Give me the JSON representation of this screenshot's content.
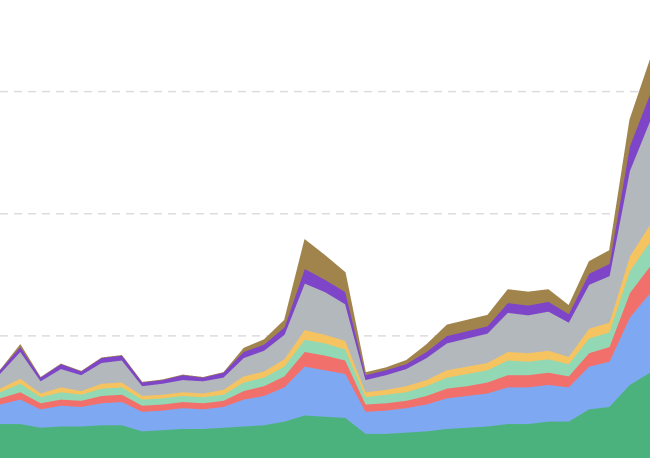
{
  "chart_data": {
    "type": "stacked_area",
    "categories": [
      null,
      null,
      null,
      null,
      null,
      null,
      null,
      null,
      null,
      null,
      null,
      null,
      null,
      null,
      null,
      null,
      null,
      null,
      null,
      null,
      null,
      null,
      null,
      null,
      null,
      null,
      null,
      null,
      null,
      null,
      null,
      null,
      null
    ],
    "ylim": [
      0,
      3.75
    ],
    "yticks": [
      1,
      2,
      3
    ],
    "grid": true,
    "series": [
      {
        "color": "#4cb27d",
        "values": [
          0.28,
          0.28,
          0.25,
          0.26,
          0.26,
          0.27,
          0.27,
          0.22,
          0.23,
          0.24,
          0.24,
          0.25,
          0.26,
          0.27,
          0.3,
          0.35,
          0.34,
          0.33,
          0.2,
          0.2,
          0.21,
          0.22,
          0.24,
          0.25,
          0.26,
          0.28,
          0.28,
          0.3,
          0.3,
          0.4,
          0.42,
          0.6,
          0.7
        ]
      },
      {
        "color": "#7ea8f2",
        "values": [
          0.16,
          0.2,
          0.15,
          0.17,
          0.16,
          0.18,
          0.19,
          0.16,
          0.16,
          0.17,
          0.16,
          0.17,
          0.22,
          0.24,
          0.28,
          0.4,
          0.38,
          0.36,
          0.18,
          0.19,
          0.2,
          0.22,
          0.25,
          0.26,
          0.27,
          0.3,
          0.3,
          0.3,
          0.28,
          0.35,
          0.37,
          0.55,
          0.65
        ]
      },
      {
        "color": "#f2706c",
        "values": [
          0.05,
          0.06,
          0.05,
          0.05,
          0.05,
          0.06,
          0.06,
          0.05,
          0.05,
          0.05,
          0.05,
          0.05,
          0.07,
          0.08,
          0.09,
          0.12,
          0.12,
          0.11,
          0.06,
          0.06,
          0.06,
          0.07,
          0.08,
          0.08,
          0.09,
          0.1,
          0.1,
          0.1,
          0.09,
          0.11,
          0.12,
          0.2,
          0.22
        ]
      },
      {
        "color": "#93d8b4",
        "values": [
          0.05,
          0.07,
          0.05,
          0.06,
          0.05,
          0.06,
          0.06,
          0.05,
          0.05,
          0.05,
          0.05,
          0.05,
          0.07,
          0.07,
          0.08,
          0.1,
          0.1,
          0.09,
          0.06,
          0.07,
          0.07,
          0.08,
          0.09,
          0.1,
          0.1,
          0.12,
          0.11,
          0.11,
          0.1,
          0.12,
          0.12,
          0.18,
          0.2
        ]
      },
      {
        "color": "#f5c35f",
        "values": [
          0.03,
          0.04,
          0.03,
          0.04,
          0.03,
          0.04,
          0.04,
          0.03,
          0.03,
          0.03,
          0.03,
          0.04,
          0.05,
          0.05,
          0.06,
          0.08,
          0.07,
          0.07,
          0.04,
          0.04,
          0.05,
          0.05,
          0.06,
          0.06,
          0.06,
          0.07,
          0.07,
          0.07,
          0.06,
          0.08,
          0.08,
          0.12,
          0.14
        ]
      },
      {
        "color": "#b3b8bd",
        "values": [
          0.12,
          0.22,
          0.1,
          0.15,
          0.13,
          0.17,
          0.18,
          0.08,
          0.09,
          0.1,
          0.1,
          0.1,
          0.15,
          0.17,
          0.2,
          0.38,
          0.35,
          0.3,
          0.1,
          0.12,
          0.14,
          0.18,
          0.22,
          0.23,
          0.24,
          0.32,
          0.31,
          0.32,
          0.28,
          0.36,
          0.38,
          0.7,
          0.85
        ]
      },
      {
        "color": "#7e45c8",
        "values": [
          0.03,
          0.04,
          0.03,
          0.04,
          0.03,
          0.04,
          0.04,
          0.03,
          0.03,
          0.04,
          0.03,
          0.04,
          0.05,
          0.05,
          0.06,
          0.12,
          0.1,
          0.1,
          0.04,
          0.04,
          0.04,
          0.05,
          0.06,
          0.06,
          0.06,
          0.08,
          0.08,
          0.08,
          0.07,
          0.09,
          0.1,
          0.2,
          0.22
        ]
      },
      {
        "color": "#a0844c",
        "values": [
          0,
          0.02,
          0,
          0,
          0,
          0,
          0,
          0,
          0,
          0,
          0,
          0,
          0.03,
          0.04,
          0.06,
          0.24,
          0.2,
          0.16,
          0.02,
          0.02,
          0.03,
          0.06,
          0.09,
          0.09,
          0.09,
          0.11,
          0.11,
          0.1,
          0.07,
          0.1,
          0.11,
          0.22,
          0.28
        ]
      }
    ]
  }
}
